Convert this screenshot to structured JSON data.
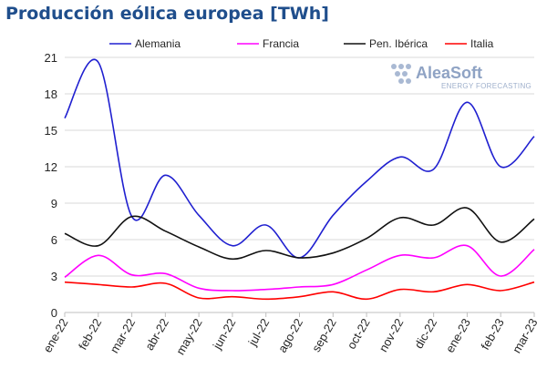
{
  "title": "Producción eólica europea [TWh]",
  "logo": {
    "name": "AleaSoft",
    "tagline": "ENERGY FORECASTING"
  },
  "chart_data": {
    "type": "line",
    "categories": [
      "ene-22",
      "feb-22",
      "mar-22",
      "abr-22",
      "may-22",
      "jun-22",
      "jul-22",
      "ago-22",
      "sep-22",
      "oct-22",
      "nov-22",
      "dic-22",
      "ene-23",
      "feb-23",
      "mar-23"
    ],
    "ylim": [
      0,
      21
    ],
    "yticks": [
      0,
      3,
      6,
      9,
      12,
      15,
      18,
      21
    ],
    "grid": true,
    "legend_position": "top",
    "series": [
      {
        "name": "Alemania",
        "color": "#2020d0",
        "values": [
          16.0,
          20.6,
          7.9,
          11.3,
          8.0,
          5.5,
          7.2,
          4.5,
          8.0,
          10.8,
          12.8,
          11.8,
          17.3,
          12.0,
          14.5
        ]
      },
      {
        "name": "Francia",
        "color": "#ff00ff",
        "values": [
          2.9,
          4.7,
          3.1,
          3.2,
          2.0,
          1.8,
          1.9,
          2.1,
          2.3,
          3.5,
          4.7,
          4.5,
          5.5,
          3.0,
          5.2
        ]
      },
      {
        "name": "Pen. Ibérica",
        "color": "#111111",
        "values": [
          6.5,
          5.5,
          7.9,
          6.7,
          5.4,
          4.4,
          5.1,
          4.5,
          4.9,
          6.1,
          7.8,
          7.2,
          8.6,
          5.8,
          7.7
        ]
      },
      {
        "name": "Italia",
        "color": "#ff0000",
        "values": [
          2.5,
          2.3,
          2.1,
          2.4,
          1.2,
          1.3,
          1.1,
          1.3,
          1.7,
          1.1,
          1.9,
          1.7,
          2.3,
          1.8,
          2.5
        ]
      }
    ]
  }
}
